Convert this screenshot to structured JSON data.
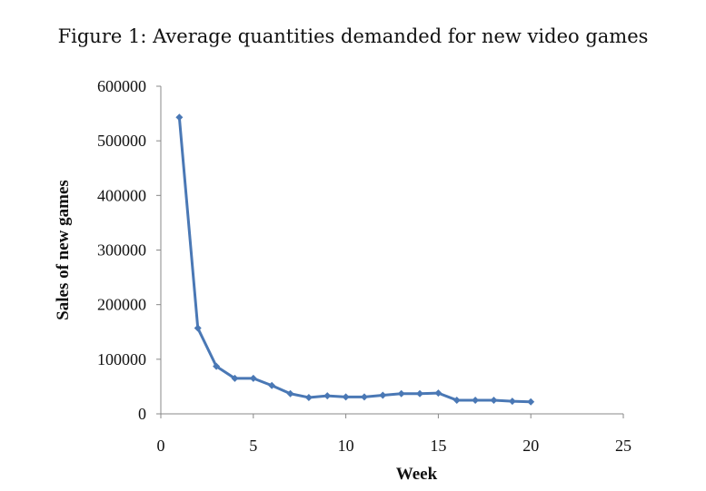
{
  "title": "Figure 1: Average quantities demanded for new video games",
  "chart_data": {
    "type": "line",
    "xlabel": "Week",
    "ylabel": "Sales of new games",
    "xlim": [
      0,
      25
    ],
    "ylim": [
      0,
      600000
    ],
    "xticks": [
      0,
      5,
      10,
      15,
      20,
      25
    ],
    "yticks": [
      0,
      100000,
      200000,
      300000,
      400000,
      500000,
      600000
    ],
    "grid": false,
    "legend": "none",
    "series": [
      {
        "color": "#4a78b5",
        "marker": "diamond",
        "x": [
          1,
          2,
          3,
          4,
          5,
          6,
          7,
          8,
          9,
          10,
          11,
          12,
          13,
          14,
          15,
          16,
          17,
          18,
          19,
          20
        ],
        "y": [
          543000,
          157000,
          87000,
          65000,
          65000,
          52000,
          37000,
          30000,
          33000,
          31000,
          31000,
          34000,
          37000,
          37000,
          38000,
          25000,
          25000,
          25000,
          23000,
          22000
        ]
      }
    ]
  }
}
